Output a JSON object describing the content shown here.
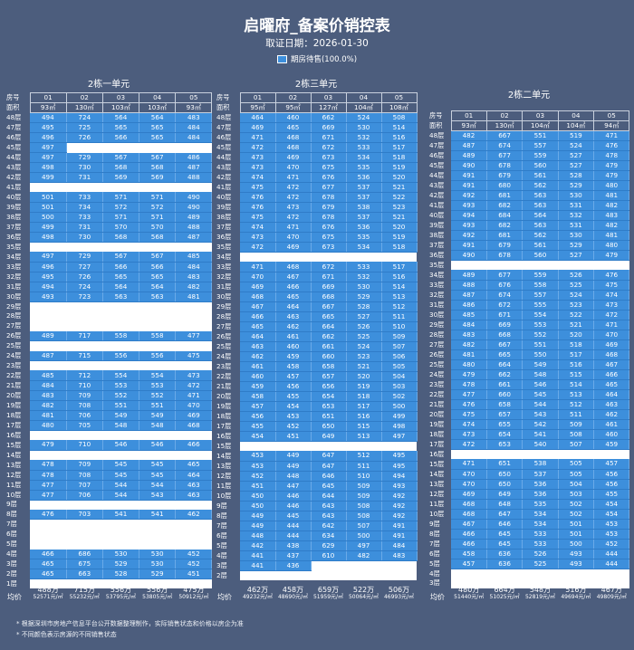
{
  "title": "启曜府_备案价销控表",
  "date_line": "取证日期：2026-01-30",
  "legend": {
    "label": "期房待售(100.0%)",
    "color": "#3d8fdc"
  },
  "row_label_room": "房号",
  "row_label_area": "面积",
  "avg_label": "均价",
  "notes": [
    "* 根据深圳市房地产信息平台公开数据整理制作，实际销售状态和价格以房企为准",
    "* 不同颜色表示房源的不同销售状态"
  ],
  "buildings": [
    {
      "name": "2栋一单元",
      "rooms": [
        "01",
        "02",
        "03",
        "04",
        "05"
      ],
      "areas": [
        "93㎡",
        "130㎡",
        "103㎡",
        "103㎡",
        "93㎡"
      ],
      "top_floor": 48,
      "rows": [
        [
          "494",
          "724",
          "564",
          "564",
          "483"
        ],
        [
          "495",
          "725",
          "565",
          "565",
          "484"
        ],
        [
          "496",
          "726",
          "566",
          "565",
          "484"
        ],
        [
          "497",
          "",
          "",
          "",
          ""
        ],
        [
          "497",
          "729",
          "567",
          "567",
          "486"
        ],
        [
          "498",
          "730",
          "568",
          "568",
          "487"
        ],
        [
          "499",
          "731",
          "569",
          "569",
          "488"
        ],
        [
          "",
          "",
          "",
          "",
          ""
        ],
        [
          "501",
          "733",
          "571",
          "571",
          "490"
        ],
        [
          "501",
          "734",
          "572",
          "572",
          "490"
        ],
        [
          "500",
          "733",
          "571",
          "571",
          "489"
        ],
        [
          "499",
          "731",
          "570",
          "570",
          "488"
        ],
        [
          "498",
          "730",
          "568",
          "568",
          "487"
        ],
        [
          "",
          "",
          "",
          "",
          ""
        ],
        [
          "497",
          "729",
          "567",
          "567",
          "485"
        ],
        [
          "496",
          "727",
          "566",
          "566",
          "484"
        ],
        [
          "495",
          "726",
          "565",
          "565",
          "483"
        ],
        [
          "494",
          "724",
          "564",
          "564",
          "482"
        ],
        [
          "493",
          "723",
          "563",
          "563",
          "481"
        ],
        [
          "",
          "",
          "",
          "",
          ""
        ],
        [
          "",
          "",
          "",
          "",
          ""
        ],
        [
          "",
          "",
          "",
          "",
          ""
        ],
        [
          "489",
          "717",
          "558",
          "558",
          "477"
        ],
        [
          "",
          "",
          "",
          "",
          ""
        ],
        [
          "487",
          "715",
          "556",
          "556",
          "475"
        ],
        [
          "",
          "",
          "",
          "",
          ""
        ],
        [
          "485",
          "712",
          "554",
          "554",
          "473"
        ],
        [
          "484",
          "710",
          "553",
          "553",
          "472"
        ],
        [
          "483",
          "709",
          "552",
          "552",
          "471"
        ],
        [
          "482",
          "708",
          "551",
          "551",
          "470"
        ],
        [
          "481",
          "706",
          "549",
          "549",
          "469"
        ],
        [
          "480",
          "705",
          "548",
          "548",
          "468"
        ],
        [
          "",
          "",
          "",
          "",
          ""
        ],
        [
          "479",
          "710",
          "546",
          "546",
          "466"
        ],
        [
          "",
          "",
          "",
          "",
          ""
        ],
        [
          "478",
          "709",
          "545",
          "545",
          "465"
        ],
        [
          "478",
          "708",
          "545",
          "545",
          "464"
        ],
        [
          "477",
          "707",
          "544",
          "544",
          "463"
        ],
        [
          "477",
          "706",
          "544",
          "543",
          "463"
        ],
        [
          "",
          "",
          "",
          "",
          ""
        ],
        [
          "476",
          "703",
          "541",
          "541",
          "462"
        ],
        [
          "",
          "",
          "",
          "",
          ""
        ],
        [
          "",
          "",
          "",
          "",
          ""
        ],
        [
          "",
          "",
          "",
          "",
          ""
        ],
        [
          "466",
          "686",
          "530",
          "530",
          "452"
        ],
        [
          "465",
          "675",
          "529",
          "530",
          "452"
        ],
        [
          "465",
          "663",
          "528",
          "529",
          "451"
        ],
        [
          "",
          "",
          "",
          "",
          ""
        ]
      ],
      "avg": [
        [
          "488万",
          "52571元/㎡"
        ],
        [
          "715万",
          "55232元/㎡"
        ],
        [
          "556万",
          "53795元/㎡"
        ],
        [
          "556万",
          "53805元/㎡"
        ],
        [
          "475万",
          "50912元/㎡"
        ]
      ]
    },
    {
      "name": "2栋三单元",
      "rooms": [
        "01",
        "02",
        "03",
        "04",
        "05"
      ],
      "areas": [
        "95㎡",
        "95㎡",
        "127㎡",
        "104㎡",
        "108㎡"
      ],
      "top_floor": 48,
      "rows": [
        [
          "464",
          "460",
          "662",
          "524",
          "508"
        ],
        [
          "469",
          "465",
          "669",
          "530",
          "514"
        ],
        [
          "471",
          "468",
          "671",
          "532",
          "516"
        ],
        [
          "472",
          "468",
          "672",
          "533",
          "517"
        ],
        [
          "473",
          "469",
          "673",
          "534",
          "518"
        ],
        [
          "473",
          "470",
          "675",
          "535",
          "519"
        ],
        [
          "474",
          "471",
          "676",
          "536",
          "520"
        ],
        [
          "475",
          "472",
          "677",
          "537",
          "521"
        ],
        [
          "476",
          "472",
          "678",
          "537",
          "522"
        ],
        [
          "476",
          "473",
          "679",
          "538",
          "523"
        ],
        [
          "475",
          "472",
          "678",
          "537",
          "521"
        ],
        [
          "474",
          "471",
          "676",
          "536",
          "520"
        ],
        [
          "473",
          "470",
          "675",
          "535",
          "519"
        ],
        [
          "472",
          "469",
          "673",
          "534",
          "518"
        ],
        [
          "",
          "",
          "",
          "",
          ""
        ],
        [
          "471",
          "468",
          "672",
          "533",
          "517"
        ],
        [
          "470",
          "467",
          "671",
          "532",
          "516"
        ],
        [
          "469",
          "466",
          "669",
          "530",
          "514"
        ],
        [
          "468",
          "465",
          "668",
          "529",
          "513"
        ],
        [
          "467",
          "464",
          "667",
          "528",
          "512"
        ],
        [
          "466",
          "463",
          "665",
          "527",
          "511"
        ],
        [
          "465",
          "462",
          "664",
          "526",
          "510"
        ],
        [
          "464",
          "461",
          "662",
          "525",
          "509"
        ],
        [
          "463",
          "460",
          "661",
          "524",
          "507"
        ],
        [
          "462",
          "459",
          "660",
          "523",
          "506"
        ],
        [
          "461",
          "458",
          "658",
          "521",
          "505"
        ],
        [
          "460",
          "457",
          "657",
          "520",
          "504"
        ],
        [
          "459",
          "456",
          "656",
          "519",
          "503"
        ],
        [
          "458",
          "455",
          "654",
          "518",
          "502"
        ],
        [
          "457",
          "454",
          "653",
          "517",
          "500"
        ],
        [
          "456",
          "453",
          "651",
          "516",
          "499"
        ],
        [
          "455",
          "452",
          "650",
          "515",
          "498"
        ],
        [
          "454",
          "451",
          "649",
          "513",
          "497"
        ],
        [
          "",
          "",
          "",
          "",
          ""
        ],
        [
          "453",
          "449",
          "647",
          "512",
          "495"
        ],
        [
          "453",
          "449",
          "647",
          "511",
          "495"
        ],
        [
          "452",
          "448",
          "646",
          "510",
          "494"
        ],
        [
          "451",
          "447",
          "645",
          "509",
          "493"
        ],
        [
          "450",
          "446",
          "644",
          "509",
          "492"
        ],
        [
          "450",
          "446",
          "643",
          "508",
          "492"
        ],
        [
          "449",
          "445",
          "643",
          "508",
          "492"
        ],
        [
          "449",
          "444",
          "642",
          "507",
          "491"
        ],
        [
          "448",
          "444",
          "634",
          "500",
          "491"
        ],
        [
          "442",
          "438",
          "629",
          "497",
          "484"
        ],
        [
          "441",
          "437",
          "610",
          "482",
          "483"
        ],
        [
          "441",
          "436",
          "",
          "",
          ""
        ],
        [
          "",
          "",
          "",
          "",
          ""
        ]
      ],
      "avg": [
        [
          "462万",
          "49232元/㎡"
        ],
        [
          "458万",
          "48690元/㎡"
        ],
        [
          "659万",
          "51959元/㎡"
        ],
        [
          "522万",
          "50064元/㎡"
        ],
        [
          "506万",
          "46993元/㎡"
        ]
      ]
    },
    {
      "name": "2栋二单元",
      "rooms": [
        "01",
        "02",
        "03",
        "04",
        "05"
      ],
      "areas": [
        "93㎡",
        "130㎡",
        "104㎡",
        "104㎡",
        "94㎡"
      ],
      "top_floor": 48,
      "rows": [
        [
          "482",
          "667",
          "551",
          "519",
          "471"
        ],
        [
          "487",
          "674",
          "557",
          "524",
          "476"
        ],
        [
          "489",
          "677",
          "559",
          "527",
          "478"
        ],
        [
          "490",
          "678",
          "560",
          "527",
          "479"
        ],
        [
          "491",
          "679",
          "561",
          "528",
          "479"
        ],
        [
          "491",
          "680",
          "562",
          "529",
          "480"
        ],
        [
          "492",
          "681",
          "563",
          "530",
          "481"
        ],
        [
          "493",
          "682",
          "563",
          "531",
          "482"
        ],
        [
          "494",
          "684",
          "564",
          "532",
          "483"
        ],
        [
          "493",
          "682",
          "563",
          "531",
          "482"
        ],
        [
          "492",
          "681",
          "562",
          "530",
          "481"
        ],
        [
          "491",
          "679",
          "561",
          "529",
          "480"
        ],
        [
          "490",
          "678",
          "560",
          "527",
          "479"
        ],
        [
          "",
          "",
          "",
          "",
          ""
        ],
        [
          "489",
          "677",
          "559",
          "526",
          "476"
        ],
        [
          "488",
          "676",
          "558",
          "525",
          "475"
        ],
        [
          "487",
          "674",
          "557",
          "524",
          "474"
        ],
        [
          "486",
          "672",
          "555",
          "523",
          "473"
        ],
        [
          "485",
          "671",
          "554",
          "522",
          "472"
        ],
        [
          "484",
          "669",
          "553",
          "521",
          "471"
        ],
        [
          "483",
          "668",
          "552",
          "520",
          "470"
        ],
        [
          "482",
          "667",
          "551",
          "518",
          "469"
        ],
        [
          "481",
          "665",
          "550",
          "517",
          "468"
        ],
        [
          "480",
          "664",
          "549",
          "516",
          "467"
        ],
        [
          "479",
          "662",
          "548",
          "515",
          "466"
        ],
        [
          "478",
          "661",
          "546",
          "514",
          "465"
        ],
        [
          "477",
          "660",
          "545",
          "513",
          "464"
        ],
        [
          "476",
          "658",
          "544",
          "512",
          "463"
        ],
        [
          "475",
          "657",
          "543",
          "511",
          "462"
        ],
        [
          "474",
          "655",
          "542",
          "509",
          "461"
        ],
        [
          "473",
          "654",
          "541",
          "508",
          "460"
        ],
        [
          "472",
          "653",
          "540",
          "507",
          "459"
        ],
        [
          "",
          "",
          "",
          "",
          ""
        ],
        [
          "471",
          "651",
          "538",
          "505",
          "457"
        ],
        [
          "470",
          "650",
          "537",
          "505",
          "456"
        ],
        [
          "470",
          "650",
          "536",
          "504",
          "456"
        ],
        [
          "469",
          "649",
          "536",
          "503",
          "455"
        ],
        [
          "468",
          "648",
          "535",
          "502",
          "454"
        ],
        [
          "468",
          "647",
          "534",
          "502",
          "454"
        ],
        [
          "467",
          "646",
          "534",
          "501",
          "453"
        ],
        [
          "466",
          "645",
          "533",
          "501",
          "453"
        ],
        [
          "466",
          "645",
          "533",
          "500",
          "452"
        ],
        [
          "458",
          "636",
          "526",
          "493",
          "444"
        ],
        [
          "457",
          "636",
          "525",
          "493",
          "444"
        ],
        [
          "",
          "",
          "",
          "",
          ""
        ],
        [
          "",
          "",
          "",
          "",
          ""
        ]
      ],
      "avg": [
        [
          "480万",
          "51440元/㎡"
        ],
        [
          "664万",
          "51025元/㎡"
        ],
        [
          "548万",
          "52819元/㎡"
        ],
        [
          "516万",
          "49694元/㎡"
        ],
        [
          "467万",
          "49809元/㎡"
        ]
      ]
    }
  ]
}
